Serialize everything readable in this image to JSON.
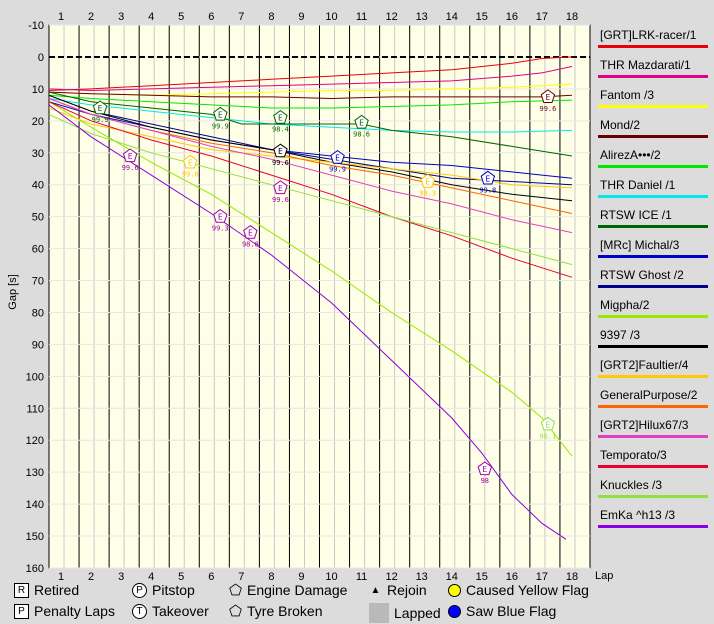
{
  "chart_data": {
    "type": "line",
    "ylabel": "Gap [s]",
    "xlabel": "Lap",
    "x_ticks": [
      1,
      2,
      3,
      4,
      5,
      6,
      7,
      8,
      9,
      10,
      11,
      12,
      13,
      14,
      15,
      16,
      17,
      18
    ],
    "y_ticks": [
      -10,
      0,
      10,
      20,
      30,
      40,
      50,
      60,
      70,
      80,
      90,
      100,
      110,
      120,
      130,
      140,
      150,
      160
    ],
    "xlim": [
      0.6,
      18.6
    ],
    "ylim": [
      -10,
      160
    ],
    "y_inverted": true,
    "grid": true,
    "legend_position": "right",
    "series": [
      {
        "name": "[GRT]LRK-racer/1",
        "color": "#e8000b",
        "x": [
          0,
          2,
          4,
          6,
          8,
          10,
          12,
          14,
          16,
          17,
          18
        ],
        "y": [
          10.5,
          10,
          9,
          8,
          7,
          6,
          5,
          4,
          2,
          0.5,
          0
        ]
      },
      {
        "name": "THR Mazdarati/1",
        "color": "#e0008a",
        "x": [
          0,
          2,
          4,
          6,
          8,
          10,
          12,
          14,
          16,
          17,
          18
        ],
        "y": [
          10,
          10.5,
          10,
          9.5,
          9,
          8.5,
          8,
          7.5,
          6,
          5,
          3
        ]
      },
      {
        "name": "Fantom /3",
        "color": "#ffff00",
        "x": [
          0,
          2,
          4,
          6,
          8,
          10,
          12,
          14,
          16,
          18
        ],
        "y": [
          11,
          11.5,
          12,
          11.5,
          11,
          10.5,
          10.5,
          10,
          9.5,
          8.5
        ]
      },
      {
        "name": "Mond/2",
        "color": "#6b0000",
        "x": [
          0,
          2,
          4,
          6,
          8,
          10,
          12,
          14,
          16,
          17,
          18
        ],
        "y": [
          11,
          11.5,
          12,
          12.5,
          12.5,
          13,
          12.5,
          12.5,
          12.5,
          12.5,
          12
        ]
      },
      {
        "name": "AlirezA•••/2",
        "color": "#00e800",
        "x": [
          0,
          2,
          4,
          6,
          8,
          10,
          12,
          14,
          16,
          18
        ],
        "y": [
          12,
          13,
          14,
          15,
          16,
          16,
          15.5,
          15,
          14,
          13.5
        ]
      },
      {
        "name": "THR Daniel /1",
        "color": "#00e8e8",
        "x": [
          0,
          2,
          4,
          6,
          8,
          10,
          12,
          14,
          16,
          18
        ],
        "y": [
          13,
          15,
          17,
          19,
          21,
          22,
          23,
          23.5,
          23.5,
          23
        ]
      },
      {
        "name": "RTSW ICE /1",
        "color": "#006400",
        "x": [
          0,
          2,
          4,
          6,
          7,
          8,
          10,
          11,
          12,
          14,
          16,
          18
        ],
        "y": [
          11,
          14,
          16,
          18,
          21,
          21,
          21,
          21,
          23,
          25,
          28,
          31
        ]
      },
      {
        "name": "[MRc] Michal/3",
        "color": "#0000c8",
        "x": [
          0,
          2,
          4,
          6,
          8,
          10,
          12,
          14,
          16,
          17,
          18
        ],
        "y": [
          14,
          18,
          22,
          26,
          29,
          31,
          33,
          34,
          36,
          37,
          38
        ]
      },
      {
        "name": "RTSW Ghost /2",
        "color": "#00008b",
        "x": [
          0,
          2,
          4,
          6,
          8,
          10,
          12,
          14,
          16,
          18
        ],
        "y": [
          12,
          17,
          21,
          25,
          29,
          32,
          35,
          38,
          39,
          40
        ]
      },
      {
        "name": "Migpha/2",
        "color": "#98e800",
        "x": [
          0,
          2,
          4,
          6,
          8,
          10,
          12,
          14,
          16,
          17,
          18
        ],
        "y": [
          14,
          22,
          33,
          43,
          55,
          67,
          80,
          92,
          105,
          113,
          125
        ]
      },
      {
        "name": "9397 /3",
        "color": "#000000",
        "x": [
          0,
          2,
          4,
          6,
          8,
          10,
          12,
          14,
          16,
          18
        ],
        "y": [
          12,
          17,
          22,
          26,
          29,
          33,
          36,
          40,
          43,
          45
        ]
      },
      {
        "name": "[GRT2]Faultier/4",
        "color": "#ffc800",
        "x": [
          0,
          2,
          4,
          6,
          8,
          10,
          12,
          14,
          16,
          18
        ],
        "y": [
          16,
          21,
          25,
          29,
          31,
          33,
          35,
          37,
          40,
          41
        ]
      },
      {
        "name": "GeneralPurpose/2",
        "color": "#ff6400",
        "x": [
          0,
          2,
          4,
          6,
          8,
          10,
          12,
          14,
          16,
          18
        ],
        "y": [
          13,
          18,
          23,
          27,
          30,
          34,
          37,
          41,
          45,
          49
        ]
      },
      {
        "name": "[GRT2]Hilux67/3",
        "color": "#e040c0",
        "x": [
          0,
          2,
          4,
          6,
          8,
          10,
          12,
          14,
          16,
          18
        ],
        "y": [
          13,
          18,
          23,
          28,
          32,
          37,
          42,
          46,
          51,
          55
        ]
      },
      {
        "name": "Temporato/3",
        "color": "#e80030",
        "x": [
          0,
          2,
          4,
          6,
          8,
          10,
          12,
          14,
          16,
          18
        ],
        "y": [
          14,
          20,
          26,
          31,
          37,
          43,
          50,
          56,
          63,
          69
        ]
      },
      {
        "name": "Knuckles /3",
        "color": "#90e040",
        "x": [
          0,
          2,
          4,
          6,
          8,
          10,
          12,
          14,
          16,
          18
        ],
        "y": [
          18,
          24,
          30,
          35,
          40,
          45,
          50,
          55,
          60,
          65
        ]
      },
      {
        "name": "EmKa ^h13 /3",
        "color": "#8a00e0",
        "x": [
          0,
          2,
          4,
          6,
          8,
          10,
          12,
          14,
          15,
          16,
          17,
          17.8
        ],
        "y": [
          15,
          25,
          37,
          49,
          62,
          77,
          95,
          113,
          124,
          137,
          146,
          151
        ]
      }
    ],
    "markers": [
      {
        "symbol": "E",
        "x": 2.3,
        "y": 16,
        "label": "99.9",
        "color": "#006400"
      },
      {
        "symbol": "E",
        "x": 6.3,
        "y": 18,
        "label": "99.9",
        "color": "#006400"
      },
      {
        "symbol": "E",
        "x": 8.3,
        "y": 19,
        "label": "98.4",
        "color": "#006400"
      },
      {
        "symbol": "E",
        "x": 11.0,
        "y": 20.5,
        "label": "98.6",
        "color": "#006400"
      },
      {
        "symbol": "E",
        "x": 17.2,
        "y": 12.5,
        "label": "99.6",
        "color": "#6b0000"
      },
      {
        "symbol": "E",
        "x": 3.3,
        "y": 31,
        "label": "99.6",
        "color": "#a000a0"
      },
      {
        "symbol": "E",
        "x": 5.3,
        "y": 33,
        "label": "99.6",
        "color": "#ffc800"
      },
      {
        "symbol": "E",
        "x": 8.3,
        "y": 29.5,
        "label": "99.6",
        "color": "#000000"
      },
      {
        "symbol": "E",
        "x": 10.2,
        "y": 31.5,
        "label": "99.9",
        "color": "#0000c8"
      },
      {
        "symbol": "E",
        "x": 8.3,
        "y": 41,
        "label": "99.6",
        "color": "#a000a0"
      },
      {
        "symbol": "E",
        "x": 13.2,
        "y": 39,
        "label": "99.3",
        "color": "#ffc800"
      },
      {
        "symbol": "E",
        "x": 15.2,
        "y": 38,
        "label": "99.8",
        "color": "#0000c8"
      },
      {
        "symbol": "E",
        "x": 6.3,
        "y": 50,
        "label": "99.3",
        "color": "#a000a0"
      },
      {
        "symbol": "E",
        "x": 7.3,
        "y": 55,
        "label": "98.8",
        "color": "#a000a0"
      },
      {
        "symbol": "E",
        "x": 17.2,
        "y": 115,
        "label": "96.1",
        "color": "#90e040"
      },
      {
        "symbol": "E",
        "x": 15.1,
        "y": 129,
        "label": "98",
        "color": "#a000a0"
      }
    ]
  },
  "bottom_legend": [
    {
      "symbol": "R",
      "shape": "box",
      "label": "Retired"
    },
    {
      "symbol": "P",
      "shape": "circle",
      "label": "Pitstop"
    },
    {
      "symbol": "E",
      "shape": "pentagon",
      "label": "Engine Damage"
    },
    {
      "symbol": "▲",
      "shape": "plain",
      "label": "Rejoin"
    },
    {
      "symbol": "",
      "shape": "yellow-dot",
      "label": "Caused Yellow Flag"
    },
    {
      "symbol": "P",
      "shape": "box",
      "label": "Penalty Laps"
    },
    {
      "symbol": "T",
      "shape": "circle",
      "label": "Takeover"
    },
    {
      "symbol": "",
      "shape": "pentagon",
      "label": "Tyre Broken"
    },
    {
      "symbol": "",
      "shape": "gray",
      "label": "Lapped"
    },
    {
      "symbol": "",
      "shape": "blue-dot",
      "label": "Saw Blue Flag"
    }
  ],
  "colors": {
    "background": "#dcdcdc",
    "plot_bg": "#ffffe8",
    "yellow_flag": "#ffff00",
    "blue_flag": "#0000ff",
    "lapped": "#b9b9b9"
  }
}
